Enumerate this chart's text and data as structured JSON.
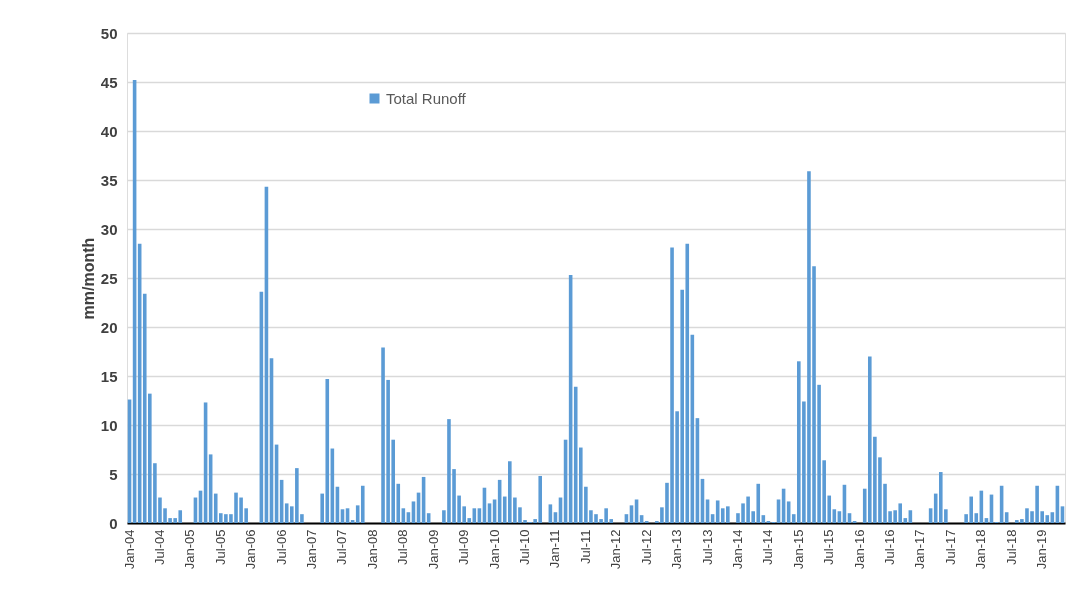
{
  "chart_data": {
    "type": "bar",
    "ylabel": "mm/month",
    "legend": "top left",
    "grid": "y",
    "categories": [
      "Jan-04",
      null,
      null,
      null,
      null,
      null,
      "Jul-04",
      null,
      null,
      null,
      null,
      null,
      "Jan-05",
      null,
      null,
      null,
      null,
      null,
      "Jul-05",
      null,
      null,
      null,
      null,
      null,
      "Jan-06",
      null,
      null,
      null,
      null,
      null,
      "Jul-06",
      null,
      null,
      null,
      null,
      null,
      "Jan-07",
      null,
      null,
      null,
      null,
      null,
      "Jul-07",
      null,
      null,
      null,
      null,
      null,
      "Jan-08",
      null,
      null,
      null,
      null,
      null,
      "Jul-08",
      null,
      null,
      null,
      null,
      null,
      "Jan-09",
      null,
      null,
      null,
      null,
      null,
      "Jul-09",
      null,
      null,
      null,
      null,
      null,
      "Jan-10",
      null,
      null,
      null,
      null,
      null,
      "Jul-10",
      null,
      null,
      null,
      null,
      null,
      "Jan-11",
      null,
      null,
      null,
      null,
      null,
      "Jul-11",
      null,
      null,
      null,
      null,
      null,
      "Jan-12",
      null,
      null,
      null,
      null,
      null,
      "Jul-12",
      null,
      null,
      null,
      null,
      null,
      "Jan-13",
      null,
      null,
      null,
      null,
      null,
      "Jul-13",
      null,
      null,
      null,
      null,
      null,
      "Jan-14",
      null,
      null,
      null,
      null,
      null,
      "Jul-14",
      null,
      null,
      null,
      null,
      null,
      "Jan-15",
      null,
      null,
      null,
      null,
      null,
      "Jul-15",
      null,
      null,
      null,
      null,
      null,
      "Jan-16",
      null,
      null,
      null,
      null,
      null,
      "Jul-16",
      null,
      null,
      null,
      null,
      null,
      "Jan-17",
      null,
      null,
      null,
      null,
      null,
      "Jul-17",
      null,
      null,
      null,
      null,
      null,
      "Jan-18",
      null,
      null,
      null,
      null,
      null,
      "Jul-18",
      null,
      null,
      null,
      null,
      null,
      "Jan-19",
      null,
      null,
      null,
      null
    ],
    "series": [
      {
        "name": "Total Runoff",
        "color": "#5b9bd5",
        "values": [
          12.6,
          45.2,
          28.5,
          23.4,
          13.2,
          6.1,
          2.6,
          1.5,
          0.5,
          0.5,
          1.3,
          0,
          0,
          2.6,
          3.3,
          12.3,
          7.0,
          3.0,
          1.0,
          0.9,
          0.9,
          3.1,
          2.6,
          1.5,
          0,
          0,
          23.6,
          34.3,
          16.8,
          8.0,
          4.4,
          2.0,
          1.7,
          5.6,
          0.9,
          0,
          0,
          0,
          3.0,
          14.7,
          7.6,
          3.7,
          1.4,
          1.5,
          0.3,
          1.8,
          3.8,
          0,
          0,
          0,
          17.9,
          14.6,
          8.5,
          4.0,
          1.5,
          1.1,
          2.2,
          3.1,
          4.7,
          1.0,
          0,
          0,
          1.3,
          10.6,
          5.5,
          2.8,
          1.7,
          0.5,
          1.5,
          1.5,
          3.6,
          2.0,
          2.4,
          4.4,
          2.7,
          6.3,
          2.6,
          1.6,
          0.3,
          0.1,
          0.4,
          4.8,
          0,
          1.9,
          1.1,
          2.6,
          8.5,
          25.3,
          13.9,
          7.7,
          3.7,
          1.3,
          0.9,
          0.4,
          1.5,
          0.4,
          0,
          0,
          0.9,
          1.8,
          2.4,
          0.8,
          0.2,
          0,
          0.2,
          1.6,
          4.1,
          28.1,
          11.4,
          23.8,
          28.5,
          19.2,
          10.7,
          4.5,
          2.4,
          0.9,
          2.3,
          1.5,
          1.7,
          0,
          1.0,
          2.0,
          2.7,
          1.2,
          4.0,
          0.8,
          0.2,
          0.1,
          2.4,
          3.5,
          2.2,
          0.9,
          16.5,
          12.4,
          35.9,
          26.2,
          14.1,
          6.4,
          2.8,
          1.4,
          1.2,
          3.9,
          1.0,
          0.2,
          0,
          3.5,
          17.0,
          8.8,
          6.7,
          4.0,
          1.2,
          1.3,
          2.0,
          0.5,
          1.3,
          0,
          0,
          0,
          1.5,
          3.0,
          5.2,
          1.4,
          0,
          0,
          0,
          0.9,
          2.7,
          1.0,
          3.3,
          0.5,
          2.9,
          0.1,
          3.8,
          1.1,
          0,
          0.3,
          0.4,
          1.5,
          1.2,
          3.8,
          1.2,
          0.8,
          1.1,
          3.8,
          1.7
        ]
      }
    ],
    "ylim": [
      0,
      50
    ],
    "yticks": [
      0,
      5,
      10,
      15,
      20,
      25,
      30,
      35,
      40,
      45,
      50
    ]
  }
}
